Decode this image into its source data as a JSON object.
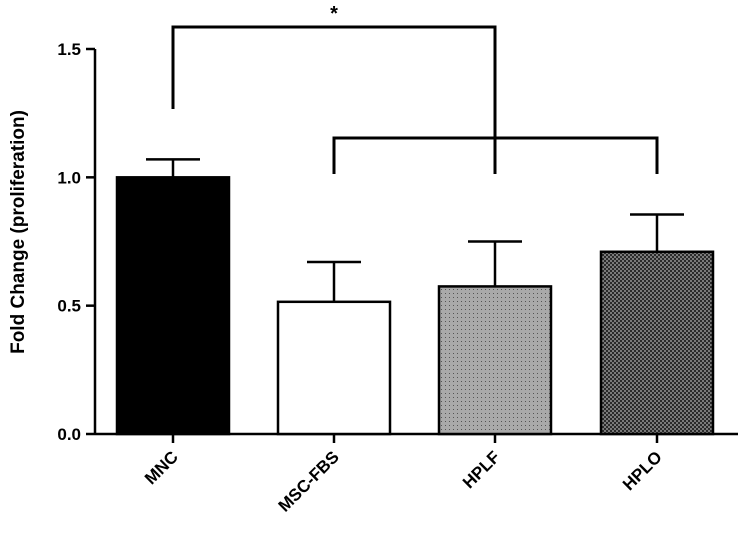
{
  "chart_data": {
    "type": "bar",
    "categories": [
      "MNC",
      "MSC-FBS",
      "HPLF",
      "HPLO"
    ],
    "values": [
      1.0,
      0.515,
      0.575,
      0.71
    ],
    "errors": [
      0.07,
      0.155,
      0.175,
      0.145
    ],
    "ylabel": "Fold Change (proliferation)",
    "ylim": [
      0,
      1.5
    ],
    "yticks": [
      "0.0",
      "0.5",
      "1.0",
      "1.5"
    ],
    "bar_fills": [
      "solid-black",
      "white",
      "fine-dots-gray",
      "checker-dark"
    ],
    "significance": {
      "label": "*",
      "from_category": "MNC",
      "to_categories": [
        "MSC-FBS",
        "HPLF",
        "HPLO"
      ]
    },
    "grid": false
  }
}
